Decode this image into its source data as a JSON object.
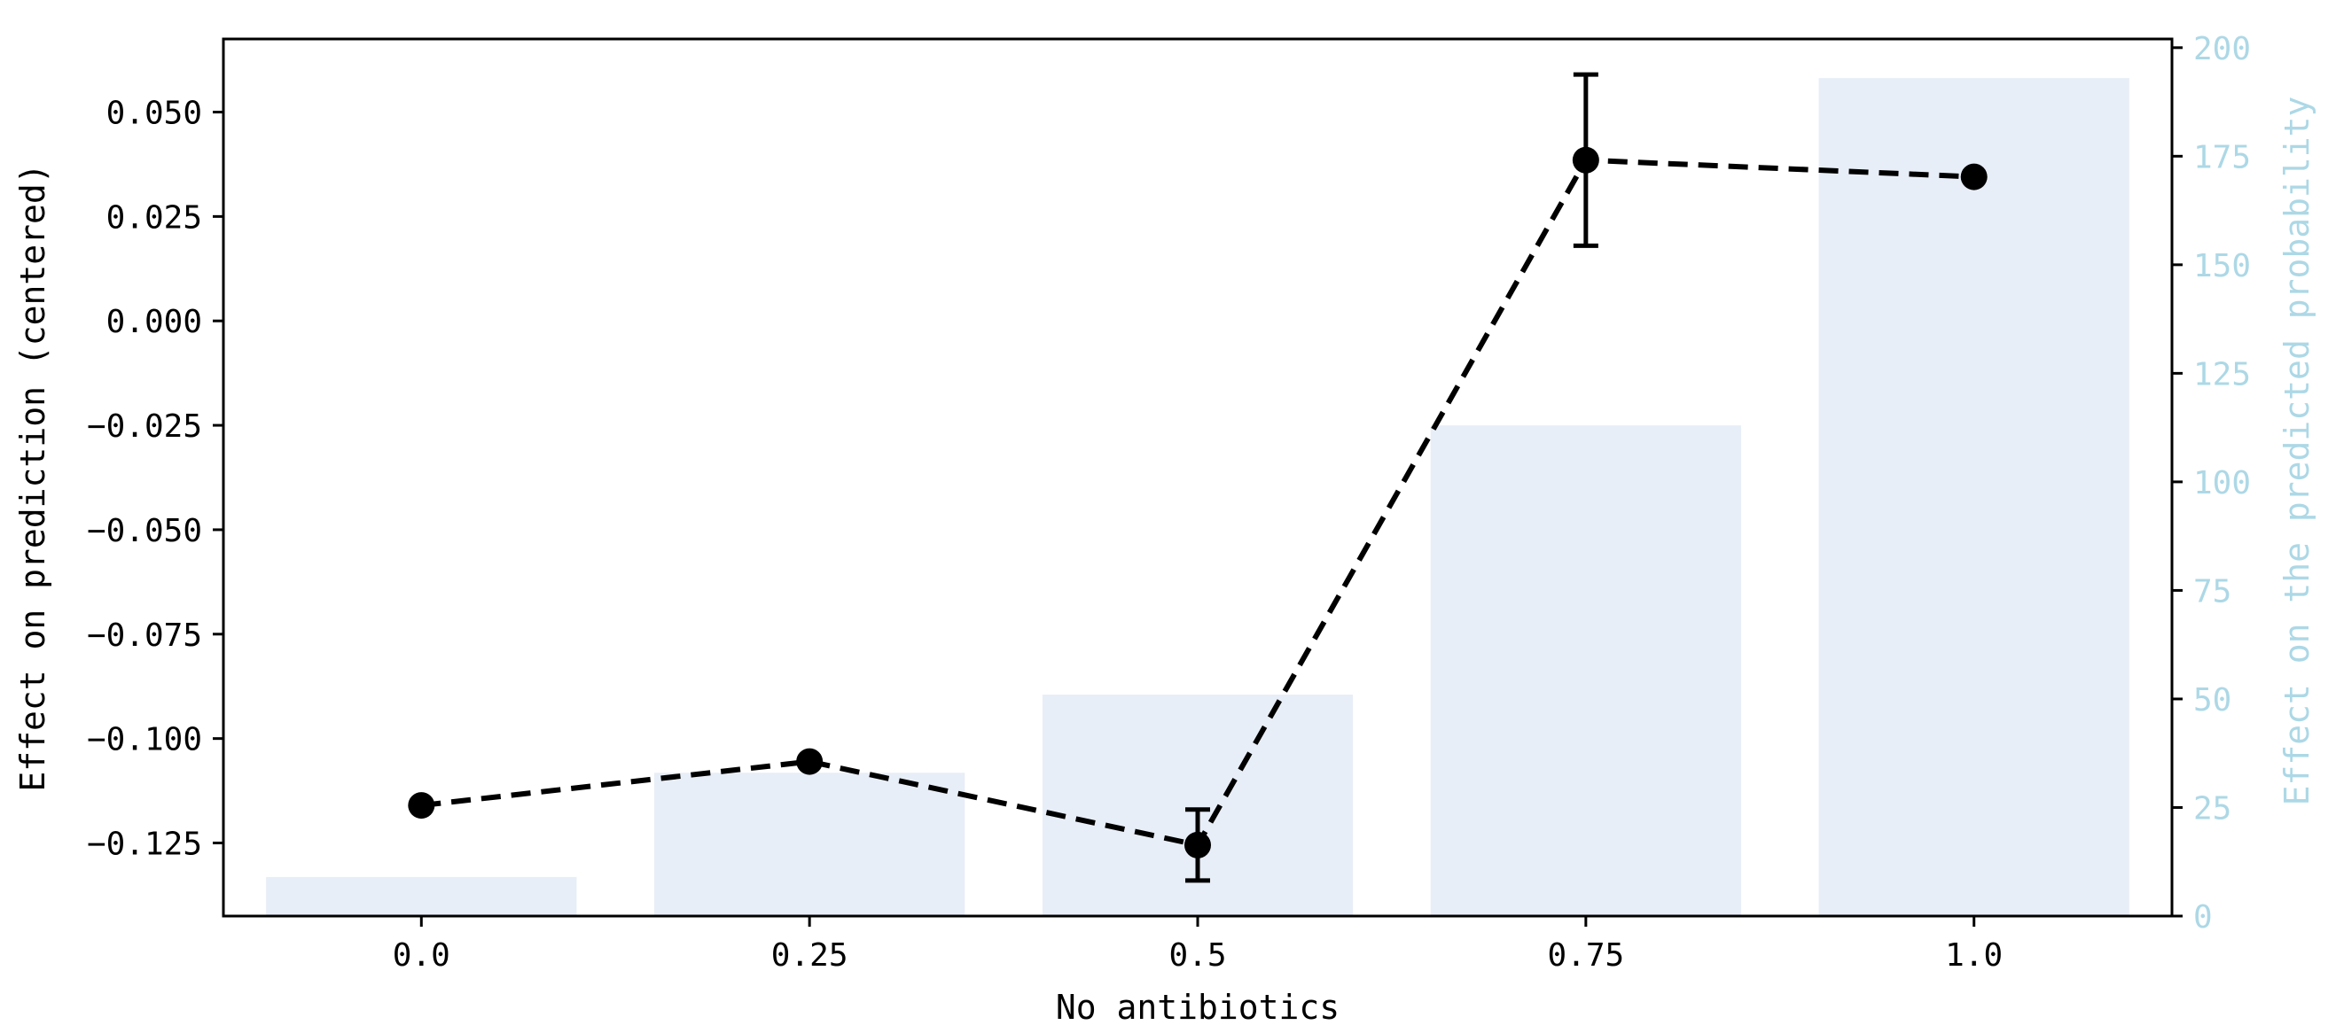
{
  "chart_data": {
    "type": "bar+line",
    "title": "",
    "xlabel": "No antibiotics",
    "ylabel_left": "Effect on prediction (centered)",
    "ylabel_right": "Effect on the predicted probability",
    "categories": [
      "0.0",
      "0.25",
      "0.5",
      "0.75",
      "1.0"
    ],
    "x": [
      0.0,
      0.25,
      0.5,
      0.75,
      1.0
    ],
    "bar_series": {
      "axis": "right",
      "values": [
        9,
        33,
        51,
        113,
        193
      ]
    },
    "line_series": {
      "axis": "left",
      "style": "dashed",
      "values": [
        -0.116,
        -0.1055,
        -0.1255,
        0.0385,
        0.0345
      ],
      "error_low": [
        -0.116,
        -0.1055,
        -0.134,
        0.018,
        0.0345
      ],
      "error_high": [
        -0.116,
        -0.1055,
        -0.117,
        0.059,
        0.0345
      ]
    },
    "ylim_left": [
      -0.1425,
      0.0675
    ],
    "ylim_right": [
      0,
      202
    ],
    "yticks_left": [
      0.05,
      0.025,
      0.0,
      -0.025,
      -0.05,
      -0.075,
      -0.1,
      -0.125
    ],
    "yticks_left_labels": [
      "0.050",
      "0.025",
      "0.000",
      "−0.025",
      "−0.050",
      "−0.075",
      "−0.100",
      "−0.125"
    ],
    "yticks_right": [
      0,
      25,
      50,
      75,
      100,
      125,
      150,
      175,
      200
    ],
    "yticks_right_labels": [
      "0",
      "25",
      "50",
      "75",
      "100",
      "125",
      "150",
      "175",
      "200"
    ],
    "grid": false,
    "colors": {
      "bars": "#e8eef7",
      "line": "#000000",
      "right_axis": "#add8e6",
      "axes": "#000000"
    }
  }
}
